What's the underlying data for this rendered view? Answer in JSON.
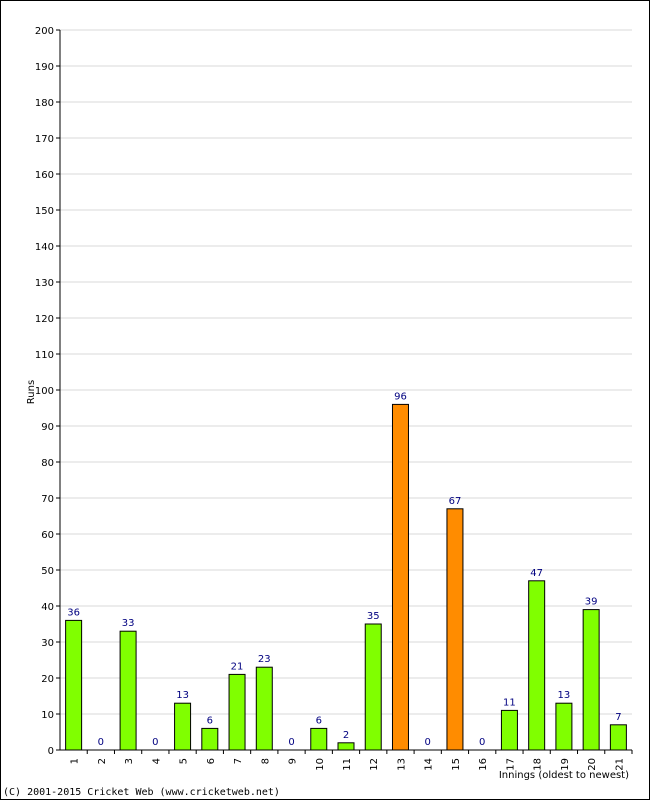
{
  "chart_data": {
    "type": "bar",
    "xlabel": "Innings (oldest to newest)",
    "ylabel": "Runs",
    "ylim": [
      0,
      200
    ],
    "ytick_step": 10,
    "grid": true,
    "categories": [
      "1",
      "2",
      "3",
      "4",
      "5",
      "6",
      "7",
      "8",
      "9",
      "10",
      "11",
      "12",
      "13",
      "14",
      "15",
      "16",
      "17",
      "18",
      "19",
      "20",
      "21"
    ],
    "values": [
      36,
      0,
      33,
      0,
      13,
      6,
      21,
      23,
      0,
      6,
      2,
      35,
      96,
      0,
      67,
      0,
      11,
      47,
      13,
      39,
      7
    ],
    "highlighted": [
      false,
      false,
      false,
      false,
      false,
      false,
      false,
      false,
      false,
      false,
      false,
      false,
      true,
      false,
      true,
      false,
      false,
      false,
      false,
      false,
      false
    ],
    "colors": {
      "normal": "#80ff00",
      "highlight": "#ff8c00",
      "outline": "#000000",
      "grid": "#d8d8d8",
      "value_label": "#000080"
    }
  },
  "footer": {
    "copyright": "(C) 2001-2015 Cricket Web (www.cricketweb.net)"
  }
}
